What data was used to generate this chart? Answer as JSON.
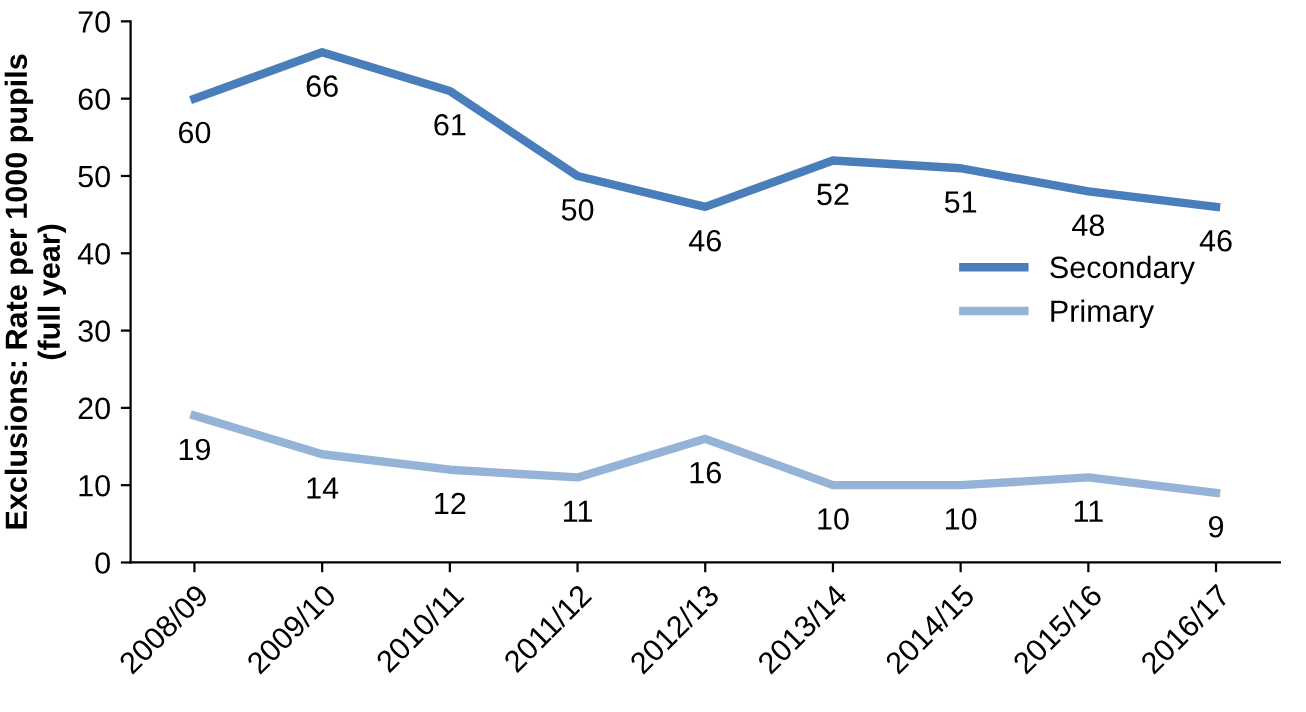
{
  "chart_data": {
    "type": "line",
    "ylabel": "Exclusions: Rate per 1000 pupils\n(full year)",
    "categories": [
      "2008/09",
      "2009/10",
      "2010/11",
      "2011/12",
      "2012/13",
      "2013/14",
      "2014/15",
      "2015/16",
      "2016/17"
    ],
    "series": [
      {
        "name": "Secondary",
        "color": "#4a7ebb",
        "values": [
          60,
          66,
          61,
          50,
          46,
          52,
          51,
          48,
          46
        ]
      },
      {
        "name": "Primary",
        "color": "#95b3d7",
        "values": [
          19,
          14,
          12,
          11,
          16,
          10,
          10,
          11,
          9
        ]
      }
    ],
    "ylim": [
      0,
      70
    ],
    "yticks": [
      0,
      10,
      20,
      30,
      40,
      50,
      60,
      70
    ],
    "grid": false,
    "legend": "right",
    "data_labels": true,
    "marker": "none",
    "line_style": "solid"
  }
}
